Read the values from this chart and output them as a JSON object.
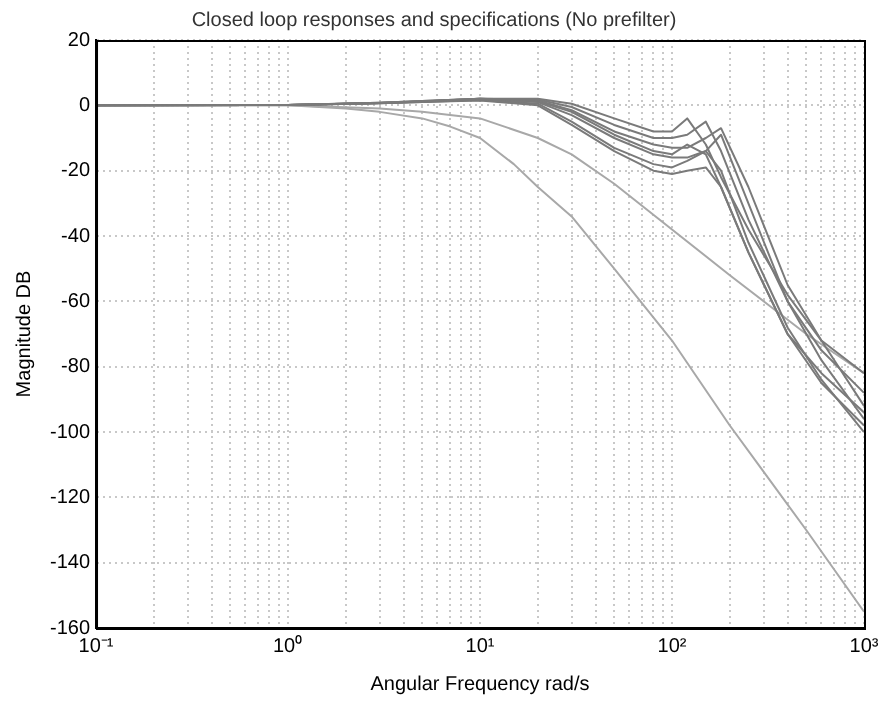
{
  "chart_data": {
    "type": "line",
    "title": "Closed loop responses and specifications (No prefilter)",
    "xlabel": "Angular Frequency rad/s",
    "ylabel": "Magnitude DB",
    "log": "x",
    "grid": true,
    "x": [
      0.1,
      1,
      3,
      5,
      10,
      20,
      30,
      50,
      80,
      100,
      120,
      150,
      180,
      250,
      400,
      600,
      1000
    ],
    "series": [
      {
        "color": "#7a7a7a",
        "values": [
          0,
          0.1,
          0.8,
          1.3,
          2,
          2,
          0.5,
          -4,
          -8,
          -8,
          -4,
          -12,
          -22,
          -38,
          -58,
          -72,
          -82
        ]
      },
      {
        "color": "#7a7a7a",
        "values": [
          0,
          0.1,
          0.8,
          1.3,
          2,
          1.8,
          -0.5,
          -6,
          -10,
          -10,
          -9,
          -5,
          -14,
          -35,
          -60,
          -75,
          -88
        ]
      },
      {
        "color": "#7a7a7a",
        "values": [
          0,
          0.1,
          0.7,
          1.2,
          2,
          1.5,
          -1.5,
          -8,
          -12,
          -13,
          -13,
          -10,
          -7,
          -25,
          -55,
          -72,
          -92
        ]
      },
      {
        "color": "#7a7a7a",
        "values": [
          0,
          0.1,
          0.7,
          1.2,
          1.8,
          1,
          -3,
          -10,
          -15,
          -16,
          -16,
          -14,
          -9,
          -30,
          -60,
          -78,
          -96
        ]
      },
      {
        "color": "#7a7a7a",
        "values": [
          0,
          0.1,
          0.6,
          1,
          1.6,
          0.5,
          -5,
          -13,
          -18,
          -19,
          -17,
          -14,
          -20,
          -42,
          -68,
          -84,
          -100
        ]
      },
      {
        "color": "#7a7a7a",
        "values": [
          0,
          0.1,
          0.6,
          1,
          1.5,
          0,
          -6,
          -14,
          -20,
          -21,
          -20,
          -19,
          -25,
          -45,
          -70,
          -85,
          -98
        ]
      },
      {
        "color": "#7a7a7a",
        "values": [
          0,
          0.1,
          0.7,
          1.2,
          2,
          1.2,
          -2,
          -9,
          -14,
          -15,
          -12,
          -15,
          -25,
          -45,
          -70,
          -82,
          -94
        ]
      },
      {
        "color": "#a8a8a8",
        "x": [
          0.1,
          1,
          3,
          5,
          10,
          20,
          30,
          50,
          100,
          200,
          300,
          500,
          1000
        ],
        "values": [
          0,
          0,
          -1,
          -2,
          -4,
          -10,
          -15,
          -24,
          -38,
          -52,
          -60,
          -70,
          -82
        ]
      },
      {
        "color": "#a8a8a8",
        "x": [
          0.1,
          1,
          2,
          3,
          5,
          7,
          10,
          15,
          20,
          30,
          50,
          100,
          200,
          500,
          1000
        ],
        "values": [
          0,
          0,
          -1,
          -2,
          -4,
          -6.5,
          -10,
          -18,
          -25,
          -34,
          -50,
          -72,
          -98,
          -130,
          -155
        ]
      }
    ],
    "xlim": [
      0.1,
      1000
    ],
    "ylim": [
      -160,
      20
    ],
    "xticks": [
      {
        "value": 0.1,
        "label": "10⁻¹"
      },
      {
        "value": 0.2,
        "label": null
      },
      {
        "value": 0.3,
        "label": null
      },
      {
        "value": 0.4,
        "label": null
      },
      {
        "value": 0.5,
        "label": null
      },
      {
        "value": 0.6,
        "label": null
      },
      {
        "value": 0.7,
        "label": null
      },
      {
        "value": 0.8,
        "label": null
      },
      {
        "value": 0.9,
        "label": null
      },
      {
        "value": 1,
        "label": "10⁰"
      },
      {
        "value": 2,
        "label": null
      },
      {
        "value": 3,
        "label": null
      },
      {
        "value": 4,
        "label": null
      },
      {
        "value": 5,
        "label": null
      },
      {
        "value": 6,
        "label": null
      },
      {
        "value": 7,
        "label": null
      },
      {
        "value": 8,
        "label": null
      },
      {
        "value": 9,
        "label": null
      },
      {
        "value": 10,
        "label": "10¹"
      },
      {
        "value": 20,
        "label": null
      },
      {
        "value": 30,
        "label": null
      },
      {
        "value": 40,
        "label": null
      },
      {
        "value": 50,
        "label": null
      },
      {
        "value": 60,
        "label": null
      },
      {
        "value": 70,
        "label": null
      },
      {
        "value": 80,
        "label": null
      },
      {
        "value": 90,
        "label": null
      },
      {
        "value": 100,
        "label": "10²"
      },
      {
        "value": 200,
        "label": null
      },
      {
        "value": 300,
        "label": null
      },
      {
        "value": 400,
        "label": null
      },
      {
        "value": 500,
        "label": null
      },
      {
        "value": 600,
        "label": null
      },
      {
        "value": 700,
        "label": null
      },
      {
        "value": 800,
        "label": null
      },
      {
        "value": 900,
        "label": null
      },
      {
        "value": 1000,
        "label": "10³"
      }
    ],
    "yticks": [
      -160,
      -140,
      -120,
      -100,
      -80,
      -60,
      -40,
      -20,
      0,
      20
    ]
  }
}
